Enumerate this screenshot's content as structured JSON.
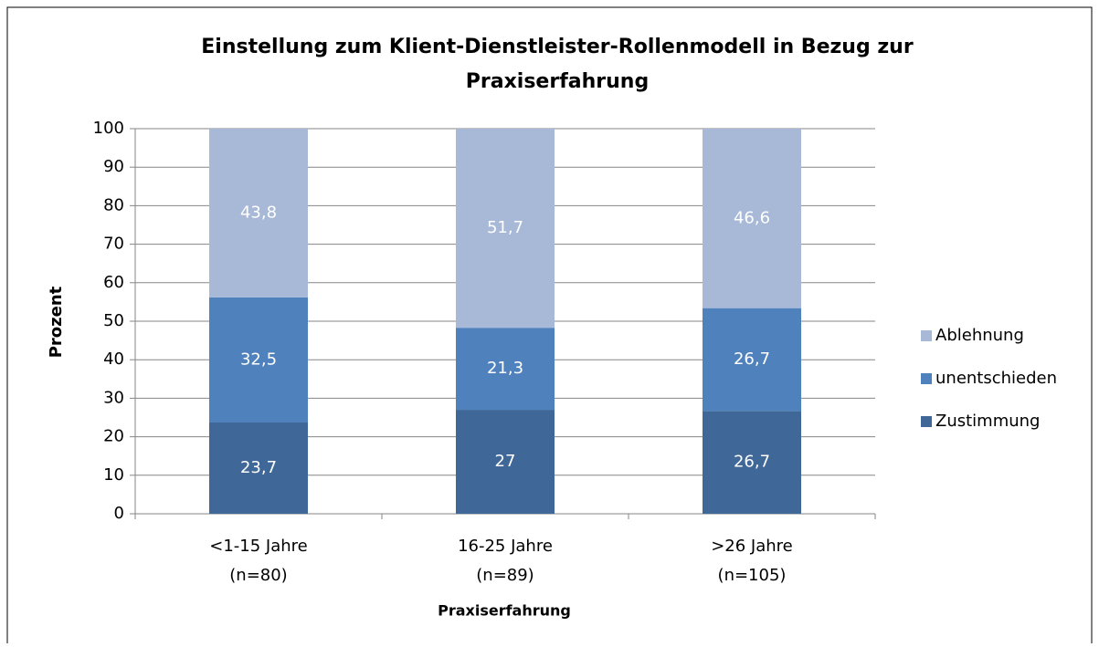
{
  "chart_data": {
    "type": "stacked_bar",
    "title": [
      "Einstellung zum Klient-Dienstleister-Rollenmodell in Bezug zur",
      "Praxiserfahrung"
    ],
    "x_label": "Praxiserfahrung",
    "y_label": "Prozent",
    "categories": [
      [
        "<1-15 Jahre",
        "(n=80)"
      ],
      [
        "16-25 Jahre",
        "(n=89)"
      ],
      [
        ">26 Jahre",
        "(n=105)"
      ]
    ],
    "series": [
      {
        "name": "Zustimmung",
        "color": "#3f6899",
        "values": [
          23.7,
          27,
          26.7
        ],
        "value_labels": [
          "23,7",
          "27",
          "26,7"
        ]
      },
      {
        "name": "unentschieden",
        "color": "#4f81bd",
        "values": [
          32.5,
          21.3,
          26.7
        ],
        "value_labels": [
          "32,5",
          "21,3",
          "26,7"
        ]
      },
      {
        "name": "Ablehnung",
        "color": "#a8b9d8",
        "values": [
          43.8,
          51.7,
          46.6
        ],
        "value_labels": [
          "43,8",
          "51,7",
          "46,6"
        ]
      }
    ],
    "ylim": [
      0,
      100
    ],
    "yticks": [
      0,
      10,
      20,
      30,
      40,
      50,
      60,
      70,
      80,
      90,
      100
    ],
    "grid": true,
    "legend": "right"
  }
}
